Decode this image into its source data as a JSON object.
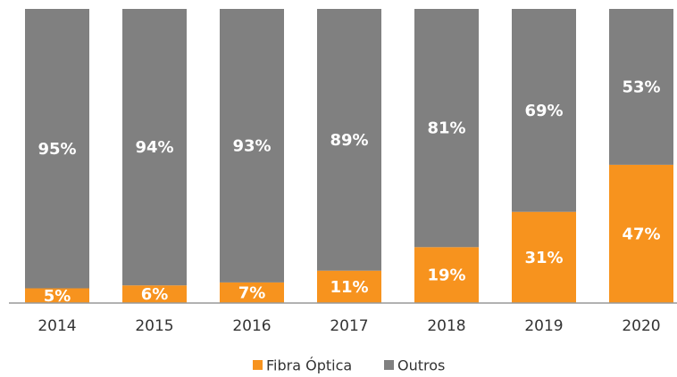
{
  "chart_data": {
    "type": "stacked_bar",
    "categories": [
      "2014",
      "2015",
      "2016",
      "2017",
      "2018",
      "2019",
      "2020"
    ],
    "series": [
      {
        "name": "Fibra Óptica",
        "color": "#f7931e",
        "values": [
          5,
          6,
          7,
          11,
          19,
          31,
          47
        ],
        "value_labels": [
          "5%",
          "6%",
          "7%",
          "11%",
          "19%",
          "31%",
          "47%"
        ]
      },
      {
        "name": "Outros",
        "color": "#808080",
        "values": [
          95,
          94,
          93,
          89,
          81,
          69,
          53
        ],
        "value_labels": [
          "95%",
          "94%",
          "93%",
          "89%",
          "81%",
          "69%",
          "53%"
        ]
      }
    ],
    "ylim": [
      0,
      100
    ],
    "legend": "bottom"
  }
}
